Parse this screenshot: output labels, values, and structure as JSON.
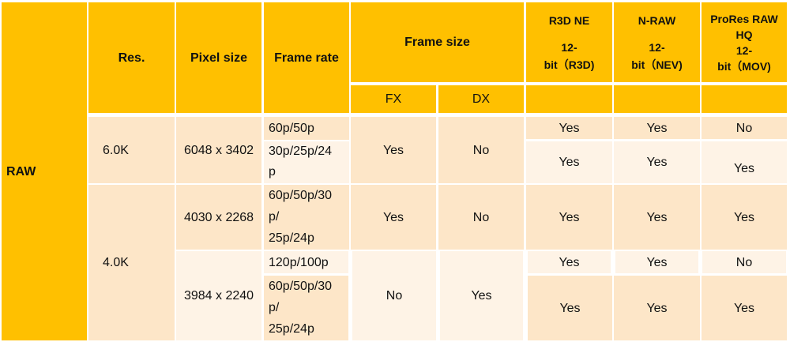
{
  "colors": {
    "header": "#FFC000",
    "shade_dark": "#FDE6C8",
    "shade_light": "#FEF3E6"
  },
  "header": {
    "raw": "RAW",
    "res": "Res.",
    "pixel_size": "Pixel size",
    "frame_rate": "Frame rate",
    "frame_size": "Frame size",
    "fx": "FX",
    "dx": "DX",
    "r3d": {
      "name": "R3D NE",
      "bit1": "12-",
      "bit2": "bit（R3D)"
    },
    "nraw": {
      "name": "N-RAW",
      "bit1": "12-",
      "bit2": "bit（NEV)"
    },
    "prores": {
      "name1": "ProRes RAW",
      "name2": "HQ",
      "bit1": "12-",
      "bit2": "bit（MOV)"
    }
  },
  "rows": {
    "r6k": {
      "res": "6.0K",
      "pixel": "6048 x 3402",
      "fr_a": "60p/50p",
      "fr_b1": "30p/25p/24",
      "fr_b2": "p",
      "fx": "Yes",
      "dx": "No",
      "a": {
        "r3d": "Yes",
        "nraw": "Yes",
        "prores": "No"
      },
      "b": {
        "r3d": "Yes",
        "nraw": "Yes",
        "prores": "Yes"
      }
    },
    "r4k": {
      "res": "4.0K"
    },
    "r4030": {
      "pixel": "4030 x 2268",
      "fr1": "60p/50p/30",
      "fr2": "p/",
      "fr3": "25p/24p",
      "fx": "Yes",
      "dx": "No",
      "r3d": "Yes",
      "nraw": "Yes",
      "prores": "Yes"
    },
    "r3984": {
      "pixel": "3984 x 2240",
      "fr_a": "120p/100p",
      "fr_b1": "60p/50p/30",
      "fr_b2": "p/",
      "fr_b3": "25p/24p",
      "fx": "No",
      "dx": "Yes",
      "a": {
        "r3d": "Yes",
        "nraw": "Yes",
        "prores": "No"
      },
      "b": {
        "r3d": "Yes",
        "nraw": "Yes",
        "prores": "Yes"
      }
    }
  }
}
